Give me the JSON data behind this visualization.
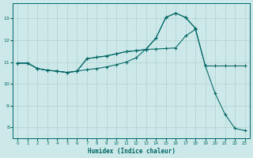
{
  "background_color": "#cce8e8",
  "grid_color": "#b0d0d0",
  "line_color": "#006666",
  "xlabel": "Humidex (Indice chaleur)",
  "xlim": [
    -0.5,
    23.5
  ],
  "ylim": [
    7.5,
    13.7
  ],
  "yticks": [
    8,
    9,
    10,
    11,
    12,
    13
  ],
  "xticks": [
    0,
    1,
    2,
    3,
    4,
    5,
    6,
    7,
    8,
    9,
    10,
    11,
    12,
    13,
    14,
    15,
    16,
    17,
    18,
    19,
    20,
    21,
    22,
    23
  ],
  "line1_x": [
    0,
    1,
    2,
    3,
    4,
    5,
    6,
    7,
    8,
    9,
    10,
    11,
    12,
    13,
    14,
    15,
    16,
    17,
    18,
    19,
    20,
    21,
    22,
    23
  ],
  "line1_y": [
    10.95,
    10.95,
    10.7,
    10.62,
    10.58,
    10.52,
    10.58,
    10.65,
    10.7,
    10.78,
    10.88,
    11.0,
    11.2,
    11.6,
    12.1,
    13.05,
    13.25,
    13.05,
    12.55,
    10.82,
    10.82,
    10.82,
    10.82,
    10.82
  ],
  "line2_x": [
    0,
    1,
    2,
    3,
    4,
    5,
    6,
    7,
    8,
    9,
    10,
    11,
    12,
    13,
    14,
    15,
    16,
    17,
    18,
    19,
    20,
    21,
    22,
    23
  ],
  "line2_y": [
    10.95,
    10.95,
    10.7,
    10.62,
    10.58,
    10.52,
    10.58,
    11.15,
    11.22,
    11.28,
    11.38,
    11.48,
    11.52,
    11.58,
    11.6,
    11.62,
    11.65,
    12.2,
    12.5,
    10.82,
    9.55,
    8.6,
    7.95,
    7.85
  ],
  "line3_x": [
    0,
    1,
    2,
    3,
    4,
    5,
    6,
    7,
    8,
    9,
    10,
    11,
    12,
    13,
    14,
    15,
    16,
    17,
    18
  ],
  "line3_y": [
    10.95,
    10.95,
    10.7,
    10.62,
    10.58,
    10.52,
    10.58,
    11.15,
    11.22,
    11.28,
    11.38,
    11.48,
    11.52,
    11.58,
    12.1,
    13.05,
    13.25,
    13.05,
    12.55
  ]
}
